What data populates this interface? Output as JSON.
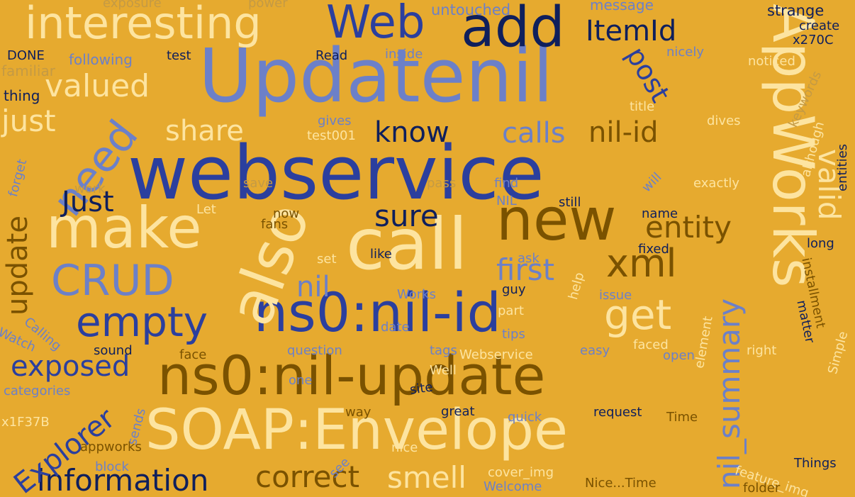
{
  "palette": {
    "background": "#e6aa2f",
    "dark_blue": "#0f1f5c",
    "blue": "#2b3f9e",
    "light_blue": "#6c80c8",
    "cream": "#fde4a0",
    "brown": "#7a5200",
    "tan": "#c49a44"
  },
  "words": [
    {
      "text": "webservice",
      "color": "blue"
    },
    {
      "text": "Updatenil",
      "color": "light_blue"
    },
    {
      "text": "ns0:nil-update",
      "color": "brown"
    },
    {
      "text": "ns0:nil-id",
      "color": "blue"
    },
    {
      "text": "SOAP:Envelope",
      "color": "cream"
    },
    {
      "text": "AppWorks",
      "color": "cream"
    },
    {
      "text": "call",
      "color": "cream"
    },
    {
      "text": "new",
      "color": "brown"
    },
    {
      "text": "make",
      "color": "cream"
    },
    {
      "text": "also",
      "color": "cream"
    },
    {
      "text": "add",
      "color": "dark_blue"
    },
    {
      "text": "Web",
      "color": "blue"
    },
    {
      "text": "interesting",
      "color": "cream"
    },
    {
      "text": "need",
      "color": "light_blue"
    },
    {
      "text": "empty",
      "color": "blue"
    },
    {
      "text": "CRUD",
      "color": "light_blue"
    },
    {
      "text": "information",
      "color": "dark_blue"
    },
    {
      "text": "Explorer",
      "color": "blue"
    },
    {
      "text": "get",
      "color": "cream"
    },
    {
      "text": "xml",
      "color": "brown"
    },
    {
      "text": "correct",
      "color": "brown"
    },
    {
      "text": "smell",
      "color": "cream"
    },
    {
      "text": "exposed",
      "color": "blue"
    },
    {
      "text": "nil_summary",
      "color": "light_blue"
    },
    {
      "text": "valid",
      "color": "cream"
    },
    {
      "text": "post",
      "color": "blue"
    },
    {
      "text": "ItemId",
      "color": "dark_blue"
    },
    {
      "text": "know",
      "color": "dark_blue"
    },
    {
      "text": "calls",
      "color": "light_blue"
    },
    {
      "text": "nil-id",
      "color": "brown"
    },
    {
      "text": "share",
      "color": "cream"
    },
    {
      "text": "valued",
      "color": "cream"
    },
    {
      "text": "just",
      "color": "cream"
    },
    {
      "text": "Just",
      "color": "dark_blue"
    },
    {
      "text": "sure",
      "color": "dark_blue"
    },
    {
      "text": "entity",
      "color": "brown"
    },
    {
      "text": "first",
      "color": "light_blue"
    },
    {
      "text": "update",
      "color": "brown"
    },
    {
      "text": "nil",
      "color": "light_blue"
    },
    {
      "text": "exposure",
      "color": "tan"
    },
    {
      "text": "power",
      "color": "tan"
    },
    {
      "text": "untouched",
      "color": "light_blue"
    },
    {
      "text": "message",
      "color": "light_blue"
    },
    {
      "text": "strange",
      "color": "dark_blue"
    },
    {
      "text": "create",
      "color": "dark_blue"
    },
    {
      "text": "x270C",
      "color": "dark_blue"
    },
    {
      "text": "DONE",
      "color": "dark_blue"
    },
    {
      "text": "familiar",
      "color": "tan"
    },
    {
      "text": "following",
      "color": "light_blue"
    },
    {
      "text": "test",
      "color": "dark_blue"
    },
    {
      "text": "Read",
      "color": "dark_blue"
    },
    {
      "text": "inside",
      "color": "light_blue"
    },
    {
      "text": "nicely",
      "color": "light_blue"
    },
    {
      "text": "noticed",
      "color": "cream"
    },
    {
      "text": "thing",
      "color": "dark_blue"
    },
    {
      "text": "gives",
      "color": "light_blue"
    },
    {
      "text": "test001",
      "color": "cream"
    },
    {
      "text": "title",
      "color": "cream"
    },
    {
      "text": "dives",
      "color": "cream"
    },
    {
      "text": "keywords",
      "color": "tan"
    },
    {
      "text": "although",
      "color": "cream"
    },
    {
      "text": "entities",
      "color": "dark_blue"
    },
    {
      "text": "forget",
      "color": "light_blue"
    },
    {
      "text": "work",
      "color": "tan"
    },
    {
      "text": "save",
      "color": "tan"
    },
    {
      "text": "pass",
      "color": "tan"
    },
    {
      "text": "find",
      "color": "light_blue"
    },
    {
      "text": "NIL",
      "color": "light_blue"
    },
    {
      "text": "will",
      "color": "light_blue"
    },
    {
      "text": "exactly",
      "color": "cream"
    },
    {
      "text": "Let",
      "color": "cream"
    },
    {
      "text": "now",
      "color": "brown"
    },
    {
      "text": "fans",
      "color": "brown"
    },
    {
      "text": "still",
      "color": "dark_blue"
    },
    {
      "text": "name",
      "color": "dark_blue"
    },
    {
      "text": "long",
      "color": "dark_blue"
    },
    {
      "text": "ask",
      "color": "light_blue"
    },
    {
      "text": "fixed",
      "color": "dark_blue"
    },
    {
      "text": "set",
      "color": "cream"
    },
    {
      "text": "like",
      "color": "dark_blue"
    },
    {
      "text": "installment",
      "color": "brown"
    },
    {
      "text": "guy",
      "color": "dark_blue"
    },
    {
      "text": "Works",
      "color": "light_blue"
    },
    {
      "text": "help",
      "color": "cream"
    },
    {
      "text": "issue",
      "color": "light_blue"
    },
    {
      "text": "part",
      "color": "cream"
    },
    {
      "text": "matter",
      "color": "dark_blue"
    },
    {
      "text": "Watch",
      "color": "light_blue"
    },
    {
      "text": "Calling",
      "color": "light_blue"
    },
    {
      "text": "date",
      "color": "light_blue"
    },
    {
      "text": "tips",
      "color": "light_blue"
    },
    {
      "text": "element",
      "color": "cream"
    },
    {
      "text": "sound",
      "color": "dark_blue"
    },
    {
      "text": "face",
      "color": "brown"
    },
    {
      "text": "question",
      "color": "light_blue"
    },
    {
      "text": "tags",
      "color": "light_blue"
    },
    {
      "text": "Webservice",
      "color": "cream"
    },
    {
      "text": "easy",
      "color": "light_blue"
    },
    {
      "text": "faced",
      "color": "cream"
    },
    {
      "text": "open",
      "color": "light_blue"
    },
    {
      "text": "right",
      "color": "cream"
    },
    {
      "text": "Simple",
      "color": "cream"
    },
    {
      "text": "one",
      "color": "light_blue"
    },
    {
      "text": "Well",
      "color": "cream"
    },
    {
      "text": "categories",
      "color": "light_blue"
    },
    {
      "text": "site",
      "color": "dark_blue"
    },
    {
      "text": "x1F37B",
      "color": "cream"
    },
    {
      "text": "way",
      "color": "brown"
    },
    {
      "text": "great",
      "color": "dark_blue"
    },
    {
      "text": "request",
      "color": "dark_blue"
    },
    {
      "text": "Time",
      "color": "brown"
    },
    {
      "text": "sends",
      "color": "light_blue"
    },
    {
      "text": "quick",
      "color": "light_blue"
    },
    {
      "text": "appworks",
      "color": "brown"
    },
    {
      "text": "see",
      "color": "light_blue"
    },
    {
      "text": "nice",
      "color": "cream"
    },
    {
      "text": "block",
      "color": "light_blue"
    },
    {
      "text": "cover_img",
      "color": "cream"
    },
    {
      "text": "Things",
      "color": "dark_blue"
    },
    {
      "text": "Welcome",
      "color": "light_blue"
    },
    {
      "text": "Nice...Time",
      "color": "brown"
    },
    {
      "text": "feature_img",
      "color": "cream"
    },
    {
      "text": "folder",
      "color": "brown"
    }
  ]
}
